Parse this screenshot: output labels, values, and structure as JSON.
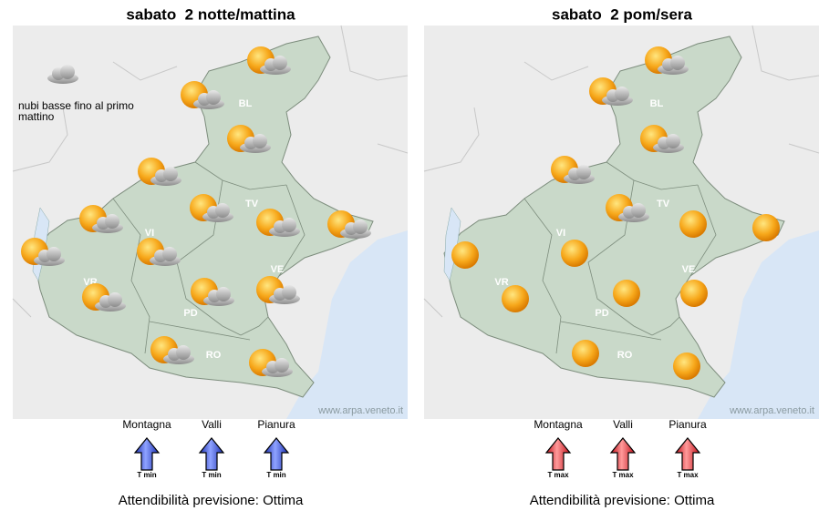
{
  "panels": [
    {
      "title": "sabato  2 notte/mattina",
      "note": [
        "nubi basse fino al primo",
        "mattino"
      ],
      "provinces": [
        "BL",
        "VI",
        "TV",
        "VR",
        "PD",
        "VE",
        "RO"
      ],
      "credit": "www.arpa.veneto.it",
      "trends": [
        {
          "zone": "Montagna",
          "label": "T min"
        },
        {
          "zone": "Valli",
          "label": "T min"
        },
        {
          "zone": "Pianura",
          "label": "T min"
        }
      ],
      "reliability": "Attendibilità previsione: Ottima"
    },
    {
      "title": "sabato  2 pom/sera",
      "provinces": [
        "BL",
        "VI",
        "TV",
        "VR",
        "PD",
        "VE",
        "RO"
      ],
      "credit": "www.arpa.veneto.it",
      "trends": [
        {
          "zone": "Montagna",
          "label": "T max"
        },
        {
          "zone": "Valli",
          "label": "T max"
        },
        {
          "zone": "Pianura",
          "label": "T max"
        }
      ],
      "reliability": "Attendibilità previsione: Ottima"
    }
  ]
}
